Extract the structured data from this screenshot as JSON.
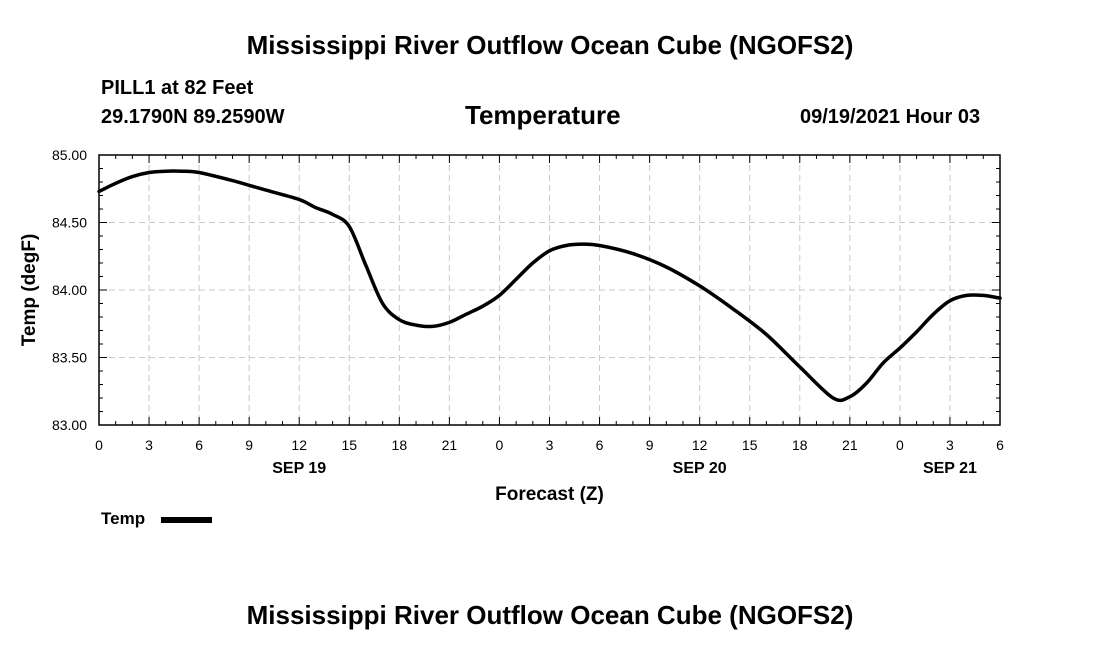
{
  "page": {
    "main_title": "Mississippi River Outflow Ocean Cube (NGOFS2)",
    "footer_title": "Mississippi River Outflow Ocean Cube (NGOFS2)",
    "station": "PILL1 at 82 Feet",
    "coords": "29.1790N  89.2590W",
    "plot_title": "Temperature",
    "timestamp": "09/19/2021 Hour 03"
  },
  "chart_data": {
    "type": "line",
    "title": "Temperature",
    "xlabel": "Forecast (Z)",
    "ylabel": "Temp (degF)",
    "ylim": [
      83.0,
      85.0
    ],
    "xlim_hours": [
      0,
      54
    ],
    "grid": true,
    "x_tick_labels": [
      "0",
      "3",
      "6",
      "9",
      "12",
      "15",
      "18",
      "21",
      "0",
      "3",
      "6",
      "9",
      "12",
      "15",
      "18",
      "21",
      "0",
      "3",
      "6"
    ],
    "date_labels": [
      {
        "label": "SEP 19",
        "hour": 12
      },
      {
        "label": "SEP 20",
        "hour": 36
      },
      {
        "label": "SEP 21",
        "hour": 51
      }
    ],
    "y_tick_labels": [
      "83.00",
      "83.50",
      "84.00",
      "84.50",
      "85.00"
    ],
    "legend": {
      "label": "Temp",
      "placement": "bottom-left"
    },
    "series": [
      {
        "name": "Temp",
        "color": "#000000",
        "x": [
          0,
          1,
          2,
          3,
          4,
          5,
          6,
          8,
          10,
          12,
          13,
          14,
          15,
          16,
          17,
          18,
          19,
          20,
          21,
          22,
          23,
          24,
          25,
          26,
          27,
          28,
          29,
          30,
          32,
          34,
          36,
          38,
          40,
          42,
          44,
          45,
          46,
          47,
          48,
          49,
          50,
          51,
          52,
          53,
          54
        ],
        "y": [
          84.73,
          84.79,
          84.84,
          84.87,
          84.88,
          84.88,
          84.87,
          84.81,
          84.74,
          84.67,
          84.61,
          84.56,
          84.47,
          84.18,
          83.9,
          83.78,
          83.74,
          83.73,
          83.76,
          83.82,
          83.88,
          83.96,
          84.08,
          84.2,
          84.29,
          84.33,
          84.34,
          84.33,
          84.27,
          84.17,
          84.03,
          83.86,
          83.67,
          83.43,
          83.2,
          83.21,
          83.31,
          83.46,
          83.57,
          83.69,
          83.82,
          83.92,
          83.96,
          83.96,
          83.94
        ]
      }
    ]
  }
}
